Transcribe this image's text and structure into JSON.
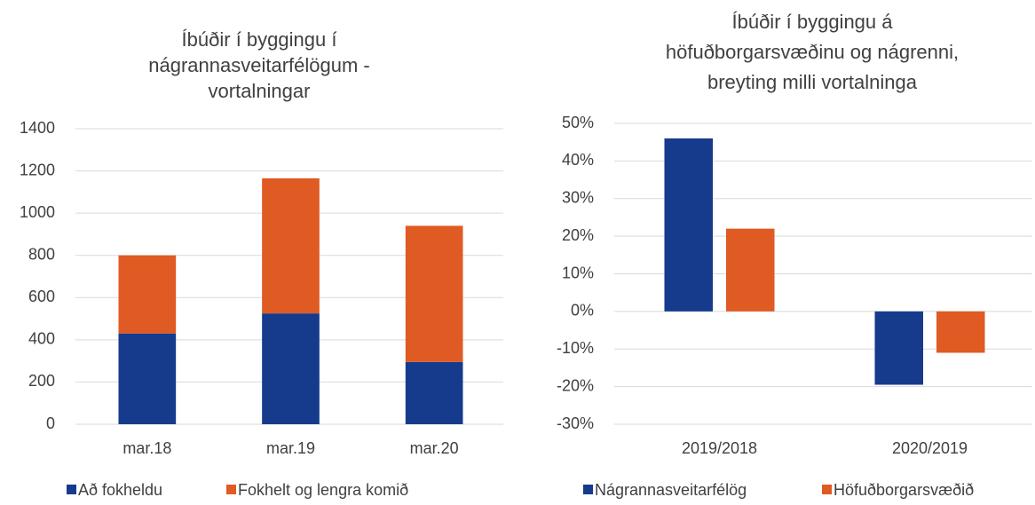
{
  "chart_data": [
    {
      "type": "stacked_bar",
      "title": [
        "Íbúðir í byggingu í",
        "nágrannasveitarfélögum -",
        "vortalningar"
      ],
      "categories": [
        "mar.18",
        "mar.19",
        "mar.20"
      ],
      "series": [
        {
          "name": "Að fokheldu",
          "color": "#163b8c",
          "values": [
            430,
            525,
            295
          ]
        },
        {
          "name": "Fokhelt og lengra komið",
          "color": "#e05a24",
          "values": [
            370,
            640,
            645
          ]
        }
      ],
      "ylim": [
        0,
        1400
      ],
      "yticks": [
        0,
        200,
        400,
        600,
        800,
        1000,
        1200,
        1400
      ],
      "grid": true
    },
    {
      "type": "grouped_bar",
      "title": [
        "Íbúðir í byggingu á",
        "höfuðborgarsvæðinu og nágrenni,",
        "breyting milli vortalninga"
      ],
      "categories": [
        "2019/2018",
        "2020/2019"
      ],
      "series": [
        {
          "name": "Nágrannasveitarfélög",
          "color": "#163b8c",
          "values": [
            46,
            -19.5
          ]
        },
        {
          "name": "Höfuðborgarsvæðið",
          "color": "#e05a24",
          "values": [
            22,
            -11
          ]
        }
      ],
      "ylim": [
        -30,
        50
      ],
      "yticks": [
        {
          "value": -30,
          "label": "-30%"
        },
        {
          "value": -20,
          "label": "-20%"
        },
        {
          "value": -10,
          "label": "-10%"
        },
        {
          "value": 0,
          "label": "0%"
        },
        {
          "value": 10,
          "label": "10%"
        },
        {
          "value": 20,
          "label": "20%"
        },
        {
          "value": 30,
          "label": "30%"
        },
        {
          "value": 40,
          "label": "40%"
        },
        {
          "value": 50,
          "label": "50%"
        }
      ],
      "grid": true
    }
  ]
}
